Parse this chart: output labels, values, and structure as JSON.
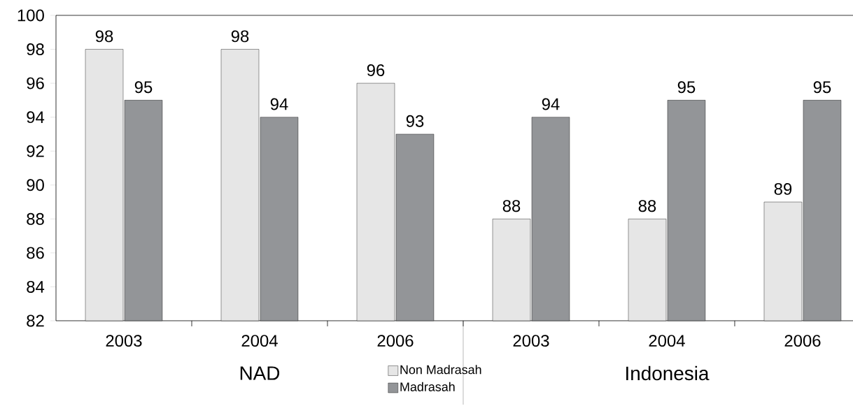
{
  "chart_data": {
    "type": "bar",
    "categories": [
      "2003",
      "2004",
      "2006",
      "2003",
      "2004",
      "2006"
    ],
    "series": [
      {
        "name": "Non Madrasah",
        "color": "#e6e6e6",
        "values": [
          98,
          98,
          96,
          88,
          88,
          89
        ]
      },
      {
        "name": "Madrasah",
        "color": "#939598",
        "values": [
          95,
          94,
          93,
          94,
          95,
          95
        ]
      }
    ],
    "ylim": [
      82,
      100
    ],
    "yticks": [
      82,
      84,
      86,
      88,
      90,
      92,
      94,
      96,
      98,
      100
    ],
    "data_labels": true,
    "grid": false,
    "legend": "bottom",
    "annotations": [
      "NAD",
      "Indonesia"
    ]
  }
}
